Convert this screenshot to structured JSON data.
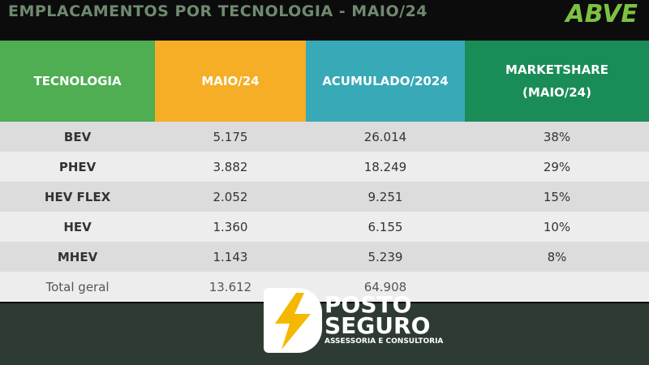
{
  "header": {
    "title": "EMPLACAMENTOS POR TECNOLOGIA - MAIO/24",
    "logo": "ABVE"
  },
  "table": {
    "columns": [
      "TECNOLOGIA",
      "MAIO/24",
      "ACUMULADO/2024",
      "MARKETSHARE (MAIO/24)"
    ],
    "rows": [
      [
        "BEV",
        "5.175",
        "26.014",
        "38%"
      ],
      [
        "PHEV",
        "3.882",
        "18.249",
        "29%"
      ],
      [
        "HEV FLEX",
        "2.052",
        "9.251",
        "15%"
      ],
      [
        "HEV",
        "1.360",
        "6.155",
        "10%"
      ],
      [
        "MHEV",
        "1.143",
        "5.239",
        "8%"
      ],
      [
        "Total geral",
        "13.612",
        "64.908",
        null
      ]
    ]
  },
  "watermark": {
    "name_line1": "POSTO",
    "name_line2": "SEGURO",
    "tagline": "ASSESSORIA E CONSULTORIA"
  }
}
